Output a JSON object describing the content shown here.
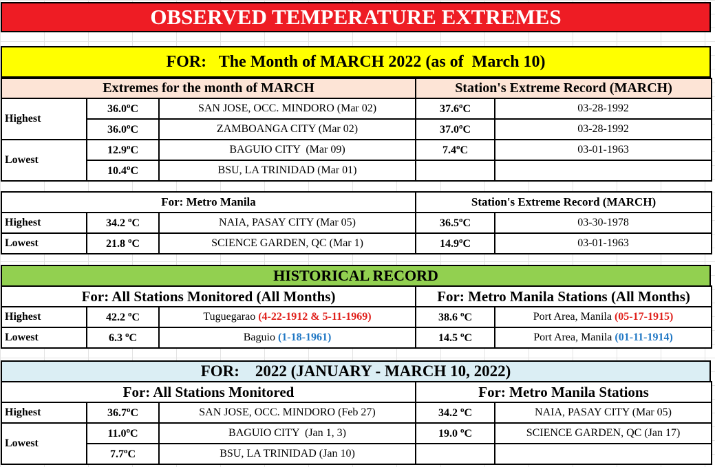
{
  "title": "OBSERVED TEMPERATURE EXTREMES",
  "month_banner": "FOR:   The Month of MARCH 2022 (as of  March 10)",
  "colors": {
    "title_bg": "#ee1c24",
    "month_bg": "#ffff00",
    "march_hdr_bg": "#fde4d6",
    "historical_bg": "#92d050",
    "year_bg": "#dbeef4",
    "red_text": "#e0201b",
    "blue_text": "#1f77c4"
  },
  "degree_unit": "°C",
  "march": {
    "left_header": "Extremes for the month of MARCH",
    "right_header": "Station's Extreme Record (MARCH)",
    "highest_label": "Highest",
    "lowest_label": "Lowest",
    "highest": [
      {
        "value": "36.0",
        "location": "SAN JOSE, OCC. MINDORO (Mar 02)",
        "record_value": "37.6",
        "record_date": "03-28-1992"
      },
      {
        "value": "36.0",
        "location": "ZAMBOANGA CITY (Mar 02)",
        "record_value": "37.0",
        "record_date": "03-28-1992"
      }
    ],
    "lowest": [
      {
        "value": "12.9",
        "location": "BAGUIO CITY  (Mar 09)",
        "record_value": "7.4",
        "record_date": "03-01-1963"
      },
      {
        "value": "10.4",
        "location": "BSU, LA TRINIDAD (Mar 01)",
        "record_value": "",
        "record_date": ""
      }
    ]
  },
  "metro": {
    "left_header": "For: Metro Manila",
    "right_header": "Station's Extreme Record (MARCH)",
    "rows": [
      {
        "label": "Highest",
        "value": "34.2 ",
        "location": "NAIA, PASAY CITY (Mar 05)",
        "record_value": "36.5",
        "record_date": "03-30-1978"
      },
      {
        "label": "Lowest",
        "value": "21.8 ",
        "location": "SCIENCE GARDEN, QC (Mar 1)",
        "record_value": "14.9",
        "record_date": "03-01-1963"
      }
    ]
  },
  "historical": {
    "banner": "HISTORICAL RECORD",
    "left_header": "For:  All Stations Monitored (All Months)",
    "right_header": "For: Metro Manila Stations (All Months)",
    "rows": [
      {
        "label": "Highest",
        "value": "42.2 ",
        "place": "Tuguegarao ",
        "dates": "(4-22-1912 & 5-11-1969)",
        "mm_value": "38.6 ",
        "mm_place": "Port Area, Manila ",
        "mm_date": "(05-17-1915)"
      },
      {
        "label": "Lowest",
        "value": "6.3 ",
        "place": "Baguio ",
        "dates": "(1-18-1961)",
        "mm_value": "14.5 ",
        "mm_place": "Port Area, Manila ",
        "mm_date": "(01-11-1914)"
      }
    ]
  },
  "year": {
    "banner": "FOR:    2022 (JANUARY - MARCH 10, 2022)",
    "left_header": "For:  All Stations Monitored",
    "right_header": "For: Metro Manila Stations",
    "highest_label": "Highest",
    "lowest_label": "Lowest",
    "highest": {
      "value": "36.7",
      "location": "SAN JOSE, OCC. MINDORO (Feb 27)",
      "mm_value": "34.2 ",
      "mm_location": "NAIA, PASAY CITY (Mar 05)"
    },
    "lowest": [
      {
        "value": "11.0",
        "location": "BAGUIO CITY  (Jan 1, 3)",
        "mm_value": "19.0 ",
        "mm_location": "SCIENCE GARDEN, QC (Jan 17)"
      },
      {
        "value": "7.7",
        "location": "BSU, LA TRINIDAD (Jan 10)",
        "mm_value": "",
        "mm_location": ""
      }
    ]
  }
}
